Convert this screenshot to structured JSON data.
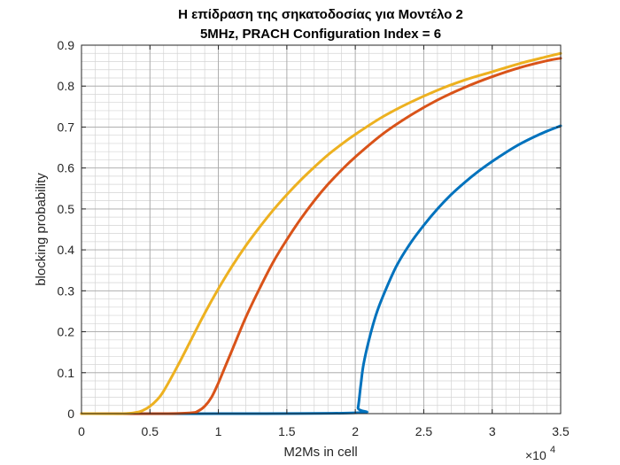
{
  "chart_data": {
    "type": "line",
    "title": [
      "Η επίδραση της σηκατοδοσίας για Μοντέλο 2",
      "5MHz, PRACH Configuration Index = 6"
    ],
    "xlabel": "M2Ms in cell",
    "ylabel": "blocking probability",
    "x_exponent_base": "×10",
    "x_exponent_power": "4",
    "xlim": [
      0,
      3.5
    ],
    "ylim": [
      0,
      0.9
    ],
    "xticks": [
      0,
      0.5,
      1,
      1.5,
      2,
      2.5,
      3,
      3.5
    ],
    "xtick_labels": [
      "0",
      "0.5",
      "1",
      "1.5",
      "2",
      "2.5",
      "3",
      "3.5"
    ],
    "yticks": [
      0,
      0.1,
      0.2,
      0.3,
      0.4,
      0.5,
      0.6,
      0.7,
      0.8,
      0.9
    ],
    "ytick_labels": [
      "0",
      "0.1",
      "0.2",
      "0.3",
      "0.4",
      "0.5",
      "0.6",
      "0.7",
      "0.8",
      "0.9"
    ],
    "minor_grid": {
      "x_step": 0.1,
      "y_step": 0.02
    },
    "grid": true,
    "series": [
      {
        "name": "blue",
        "color": "#0072BD",
        "x": [
          0,
          1.0,
          2.0,
          2.02,
          2.04,
          2.06,
          2.1,
          2.15,
          2.2,
          2.3,
          2.4,
          2.5,
          2.6,
          2.7,
          2.8,
          2.9,
          3.0,
          3.1,
          3.2,
          3.3,
          3.4,
          3.5
        ],
        "y": [
          0,
          0,
          0.002,
          0.015,
          0.07,
          0.12,
          0.18,
          0.24,
          0.285,
          0.36,
          0.415,
          0.46,
          0.5,
          0.535,
          0.565,
          0.592,
          0.616,
          0.638,
          0.658,
          0.675,
          0.69,
          0.703
        ]
      },
      {
        "name": "red",
        "color": "#D95319",
        "x": [
          0,
          0.6,
          0.8,
          0.85,
          0.9,
          0.95,
          1.0,
          1.05,
          1.1,
          1.2,
          1.3,
          1.4,
          1.5,
          1.6,
          1.7,
          1.8,
          1.9,
          2.0,
          2.2,
          2.4,
          2.6,
          2.8,
          3.0,
          3.2,
          3.4,
          3.5
        ],
        "y": [
          0,
          0,
          0.002,
          0.006,
          0.018,
          0.04,
          0.075,
          0.115,
          0.155,
          0.235,
          0.305,
          0.37,
          0.425,
          0.475,
          0.52,
          0.56,
          0.595,
          0.627,
          0.683,
          0.728,
          0.766,
          0.797,
          0.823,
          0.845,
          0.862,
          0.868
        ]
      },
      {
        "name": "yellow",
        "color": "#EDB120",
        "x": [
          0,
          0.3,
          0.4,
          0.45,
          0.5,
          0.55,
          0.6,
          0.7,
          0.8,
          0.9,
          1.0,
          1.1,
          1.2,
          1.3,
          1.4,
          1.5,
          1.6,
          1.7,
          1.8,
          1.9,
          2.0,
          2.2,
          2.4,
          2.6,
          2.8,
          3.0,
          3.2,
          3.4,
          3.5
        ],
        "y": [
          0,
          0,
          0.003,
          0.008,
          0.018,
          0.033,
          0.055,
          0.115,
          0.18,
          0.245,
          0.305,
          0.36,
          0.41,
          0.455,
          0.497,
          0.535,
          0.57,
          0.602,
          0.632,
          0.658,
          0.682,
          0.725,
          0.76,
          0.79,
          0.815,
          0.835,
          0.855,
          0.872,
          0.88
        ]
      }
    ]
  }
}
